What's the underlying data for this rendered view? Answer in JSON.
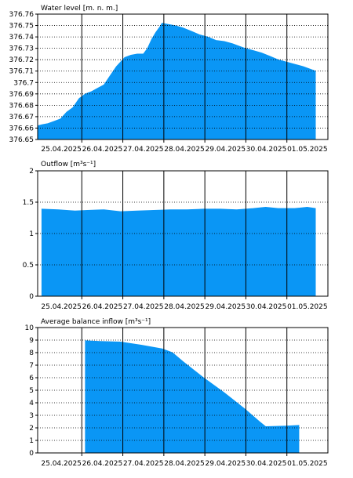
{
  "colors": {
    "fill": "#0a96f5",
    "frame": "#000000",
    "grid": "#000000",
    "background": "#ffffff"
  },
  "x_labels": [
    "25.04.2025",
    "26.04.2025",
    "27.04.2025",
    "28.04.2025",
    "29.04.2025",
    "30.04.2025",
    "01.05.2025"
  ],
  "chart_data": [
    {
      "type": "area",
      "title": "Water level [m. n. m.]",
      "x_unit": "date (day offset from 25.04.2025 00:00)",
      "ylim": [
        376.65,
        376.76
      ],
      "y_ticks": [
        "376.76",
        "376.75",
        "376.74",
        "376.73",
        "376.72",
        "376.71",
        "376.7",
        "376.69",
        "376.68",
        "376.67",
        "376.66",
        "376.65"
      ],
      "y_tick_values": [
        376.76,
        376.75,
        376.74,
        376.73,
        376.72,
        376.71,
        376.7,
        376.69,
        376.68,
        376.67,
        376.66,
        376.65
      ],
      "grid": true,
      "points": [
        [
          0.0,
          376.662
        ],
        [
          0.1,
          376.663
        ],
        [
          0.25,
          376.664
        ],
        [
          0.4,
          376.666
        ],
        [
          0.55,
          376.668
        ],
        [
          0.7,
          376.674
        ],
        [
          0.85,
          376.678
        ],
        [
          1.0,
          376.686
        ],
        [
          1.15,
          376.69
        ],
        [
          1.3,
          376.692
        ],
        [
          1.45,
          376.695
        ],
        [
          1.6,
          376.698
        ],
        [
          1.75,
          376.706
        ],
        [
          1.9,
          376.714
        ],
        [
          2.0,
          376.718
        ],
        [
          2.1,
          376.722
        ],
        [
          2.25,
          376.724
        ],
        [
          2.4,
          376.725
        ],
        [
          2.55,
          376.725
        ],
        [
          2.65,
          376.73
        ],
        [
          2.75,
          376.738
        ],
        [
          2.85,
          376.744
        ],
        [
          2.95,
          376.749
        ],
        [
          3.0,
          376.752
        ],
        [
          3.15,
          376.751
        ],
        [
          3.3,
          376.75
        ],
        [
          3.5,
          376.748
        ],
        [
          3.7,
          376.745
        ],
        [
          3.9,
          376.742
        ],
        [
          4.1,
          376.74
        ],
        [
          4.3,
          376.737
        ],
        [
          4.5,
          376.736
        ],
        [
          4.7,
          376.734
        ],
        [
          4.85,
          376.732
        ],
        [
          5.0,
          376.73
        ],
        [
          5.2,
          376.728
        ],
        [
          5.4,
          376.726
        ],
        [
          5.6,
          376.723
        ],
        [
          5.8,
          376.72
        ],
        [
          6.0,
          376.718
        ],
        [
          6.2,
          376.716
        ],
        [
          6.4,
          376.714
        ],
        [
          6.55,
          376.712
        ],
        [
          6.7,
          376.71
        ]
      ]
    },
    {
      "type": "area",
      "title": "Outflow [m³s⁻¹]",
      "x_unit": "date (day offset from 25.04.2025 00:00)",
      "ylim": [
        0,
        2
      ],
      "y_ticks": [
        "2",
        "1.5",
        "1",
        "0.5",
        "0"
      ],
      "y_tick_values": [
        2,
        1.5,
        1,
        0.5,
        0
      ],
      "grid": true,
      "points": [
        [
          0.1,
          1.39
        ],
        [
          0.5,
          1.38
        ],
        [
          0.9,
          1.36
        ],
        [
          1.2,
          1.37
        ],
        [
          1.6,
          1.38
        ],
        [
          2.0,
          1.35
        ],
        [
          2.4,
          1.36
        ],
        [
          2.8,
          1.37
        ],
        [
          3.2,
          1.38
        ],
        [
          3.6,
          1.38
        ],
        [
          4.0,
          1.39
        ],
        [
          4.4,
          1.39
        ],
        [
          4.8,
          1.38
        ],
        [
          5.2,
          1.4
        ],
        [
          5.5,
          1.42
        ],
        [
          5.8,
          1.4
        ],
        [
          6.2,
          1.4
        ],
        [
          6.5,
          1.42
        ],
        [
          6.7,
          1.4
        ]
      ]
    },
    {
      "type": "area",
      "title": "Average balance inflow  [m³s⁻¹]",
      "x_unit": "date (day offset from 25.04.2025 00:00)",
      "ylim": [
        0,
        10
      ],
      "y_ticks": [
        "10",
        "9",
        "8",
        "7",
        "6",
        "5",
        "4",
        "3",
        "2",
        "1",
        "0"
      ],
      "y_tick_values": [
        10,
        9,
        8,
        7,
        6,
        5,
        4,
        3,
        2,
        1,
        0
      ],
      "grid": true,
      "points": [
        [
          1.15,
          8.95
        ],
        [
          1.5,
          8.9
        ],
        [
          2.0,
          8.85
        ],
        [
          2.5,
          8.6
        ],
        [
          3.0,
          8.3
        ],
        [
          3.25,
          8.0
        ],
        [
          3.5,
          7.3
        ],
        [
          4.0,
          6.0
        ],
        [
          4.5,
          4.8
        ],
        [
          5.0,
          3.5
        ],
        [
          5.35,
          2.5
        ],
        [
          5.5,
          2.1
        ],
        [
          6.0,
          2.15
        ],
        [
          6.3,
          2.2
        ],
        [
          6.3,
          0
        ]
      ]
    }
  ]
}
